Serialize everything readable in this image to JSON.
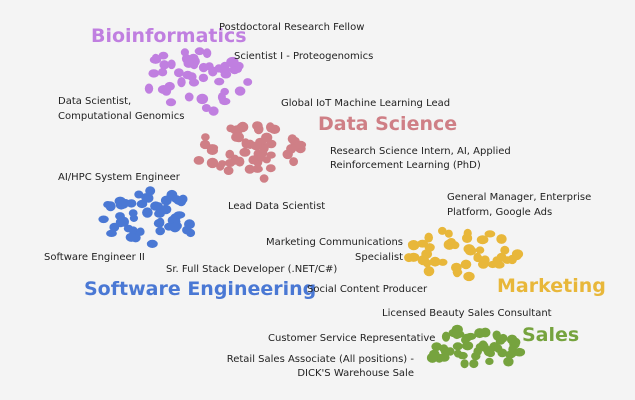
{
  "clusters": [
    {
      "id": "bioinformatics",
      "title": "Bioinformatics",
      "color": "#c07fe0",
      "labels": [
        "Postdoctoral Research Fellow",
        "Scientist I - Proteogenomics",
        "Data Scientist,",
        "Computational Genomics"
      ]
    },
    {
      "id": "data-science",
      "title": "Data Science",
      "color": "#cf7f86",
      "labels": [
        "Global IoT Machine Learning Lead",
        "Research Science Intern, AI, Applied",
        "Reinforcement Learning (PhD)",
        "Lead Data Scientist"
      ]
    },
    {
      "id": "software-engineering",
      "title": "Software Engineering",
      "color": "#4a78d4",
      "labels": [
        "AI/HPC System Engineer",
        "Software Engineer II",
        "Sr. Full Stack Developer (.NET/C#)"
      ]
    },
    {
      "id": "marketing",
      "title": "Marketing",
      "color": "#e8b73a",
      "labels": [
        "General Manager, Enterprise",
        "Platform, Google Ads",
        "Marketing Communications",
        "Specialist",
        "Social Content Producer"
      ]
    },
    {
      "id": "sales",
      "title": "Sales",
      "color": "#76a33e",
      "labels": [
        "Licensed Beauty Sales Consultant",
        "Customer Service Representative",
        "Retail Sales Associate (All positions) -",
        "DICK'S Warehouse Sale"
      ]
    }
  ]
}
